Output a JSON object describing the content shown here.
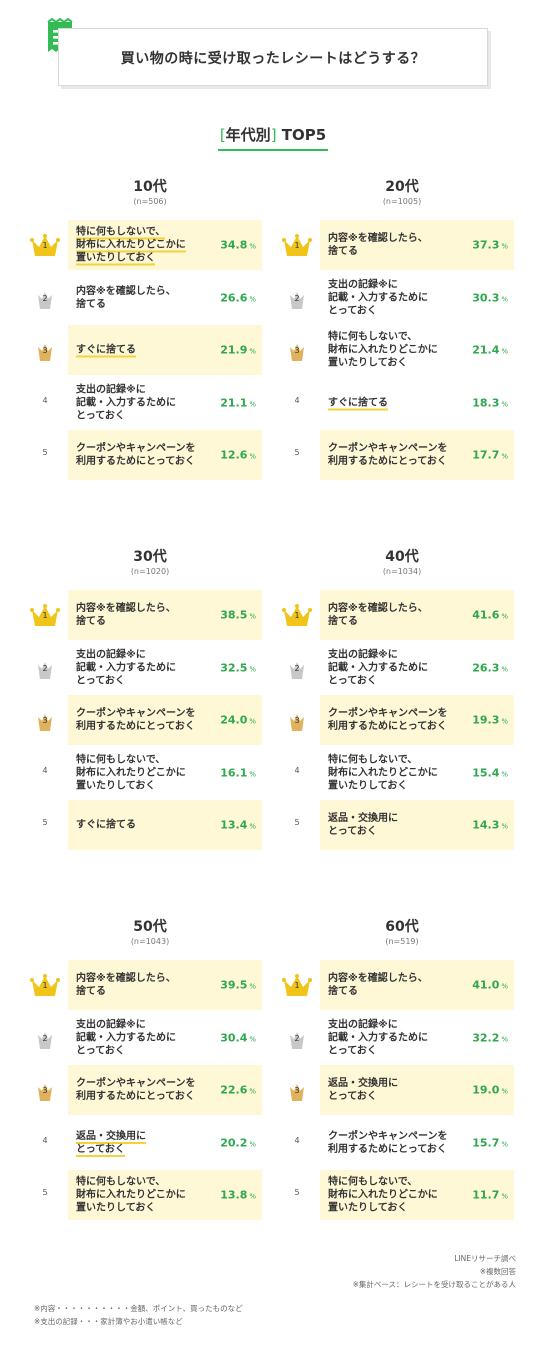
{
  "title": "買い物の時に受け取ったレシートはどうする？",
  "section_heading": {
    "open": "[",
    "label": "年代別",
    "close": "]",
    "suffix": " TOP5"
  },
  "percent_unit": "%",
  "chart_data": {
    "type": "table",
    "title": "買い物の時に受け取ったレシートはどうする？",
    "subtitle": "[年代別] TOP5",
    "groups": [
      {
        "name": "10代",
        "n": "(n=506)",
        "items": [
          {
            "rank": "1",
            "label": "特に何もしないで、\n財布に入れたりどこかに\n置いたりしておく",
            "value": 34.8
          },
          {
            "rank": "2",
            "label": "内容※を確認したら、\n捨てる",
            "value": 26.6
          },
          {
            "rank": "3",
            "label": "すぐに捨てる",
            "value": 21.9
          },
          {
            "rank": "4",
            "label": "支出の記録※に\n記載・入力するために\nとっておく",
            "value": 21.1
          },
          {
            "rank": "5",
            "label": "クーポンやキャンペーンを\n利用するためにとっておく",
            "value": 12.6
          }
        ]
      },
      {
        "name": "20代",
        "n": "(n=1005)",
        "items": [
          {
            "rank": "1",
            "label": "内容※を確認したら、\n捨てる",
            "value": 37.3
          },
          {
            "rank": "2",
            "label": "支出の記録※に\n記載・入力するために\nとっておく",
            "value": 30.3
          },
          {
            "rank": "3",
            "label": "特に何もしないで、\n財布に入れたりどこかに\n置いたりしておく",
            "value": 21.4
          },
          {
            "rank": "4",
            "label": "すぐに捨てる",
            "value": 18.3
          },
          {
            "rank": "5",
            "label": "クーポンやキャンペーンを\n利用するためにとっておく",
            "value": 17.7
          }
        ]
      },
      {
        "name": "30代",
        "n": "(n=1020)",
        "items": [
          {
            "rank": "1",
            "label": "内容※を確認したら、\n捨てる",
            "value": 38.5
          },
          {
            "rank": "2",
            "label": "支出の記録※に\n記載・入力するために\nとっておく",
            "value": 32.5
          },
          {
            "rank": "3",
            "label": "クーポンやキャンペーンを\n利用するためにとっておく",
            "value": 24.0
          },
          {
            "rank": "4",
            "label": "特に何もしないで、\n財布に入れたりどこかに\n置いたりしておく",
            "value": 16.1
          },
          {
            "rank": "5",
            "label": "すぐに捨てる",
            "value": 13.4
          }
        ]
      },
      {
        "name": "40代",
        "n": "(n=1034)",
        "items": [
          {
            "rank": "1",
            "label": "内容※を確認したら、\n捨てる",
            "value": 41.6
          },
          {
            "rank": "2",
            "label": "支出の記録※に\n記載・入力するために\nとっておく",
            "value": 26.3
          },
          {
            "rank": "3",
            "label": "クーポンやキャンペーンを\n利用するためにとっておく",
            "value": 19.3
          },
          {
            "rank": "4",
            "label": "特に何もしないで、\n財布に入れたりどこかに\n置いたりしておく",
            "value": 15.4
          },
          {
            "rank": "5",
            "label": "返品・交換用に\nとっておく",
            "value": 14.3
          }
        ]
      },
      {
        "name": "50代",
        "n": "(n=1043)",
        "items": [
          {
            "rank": "1",
            "label": "内容※を確認したら、\n捨てる",
            "value": 39.5
          },
          {
            "rank": "2",
            "label": "支出の記録※に\n記載・入力するために\nとっておく",
            "value": 30.4
          },
          {
            "rank": "3",
            "label": "クーポンやキャンペーンを\n利用するためにとっておく",
            "value": 22.6
          },
          {
            "rank": "4",
            "label": "返品・交換用に\nとっておく",
            "value": 20.2
          },
          {
            "rank": "5",
            "label": "特に何もしないで、\n財布に入れたりどこかに\n置いたりしておく",
            "value": 13.8
          }
        ]
      },
      {
        "name": "60代",
        "n": "(n=519)",
        "items": [
          {
            "rank": "1",
            "label": "内容※を確認したら、\n捨てる",
            "value": 41.0
          },
          {
            "rank": "2",
            "label": "支出の記録※に\n記載・入力するために\nとっておく",
            "value": 32.2
          },
          {
            "rank": "3",
            "label": "返品・交換用に\nとっておく",
            "value": 19.0
          },
          {
            "rank": "4",
            "label": "クーポンやキャンペーンを\n利用するためにとっておく",
            "value": 15.7
          },
          {
            "rank": "5",
            "label": "特に何もしないで、\n財布に入れたりどこかに\n置いたりしておく",
            "value": 11.7
          }
        ]
      }
    ]
  },
  "highlights": {
    "cards_by_group": [
      [
        1,
        0,
        1,
        0,
        1
      ],
      [
        1,
        0,
        0,
        0,
        1
      ],
      [
        1,
        0,
        1,
        0,
        1
      ],
      [
        1,
        0,
        1,
        0,
        1
      ],
      [
        1,
        0,
        1,
        0,
        1
      ],
      [
        1,
        0,
        1,
        0,
        1
      ]
    ],
    "underlined_rank_4_groups": [
      1,
      4
    ],
    "underlined_rank_3_groups": [
      0
    ],
    "underlined_rank_1_groups": [
      0
    ]
  },
  "colors": {
    "accent_green": "#33bb55",
    "card_bg": "#fff8d6",
    "value_green": "#2ea84e",
    "gold": "#f0c419",
    "silver": "#c8c8c8",
    "bronze": "#e0b25e",
    "underline": "#f2d33a"
  },
  "icons": {
    "title": "receipt-icon",
    "rank1": "crown-gold-icon",
    "rank2": "crown-silver-icon",
    "rank3": "crown-bronze-icon"
  },
  "footer": {
    "source": "LINEリサーチ調べ",
    "note1": "※複数回答",
    "note2": "※集計ベース：レシートを受け取ることがある人",
    "def1": "※内容・・・・・・・・・・金額、ポイント、買ったものなど",
    "def2": "※支出の記録・・・家計簿やお小遣い帳など"
  }
}
